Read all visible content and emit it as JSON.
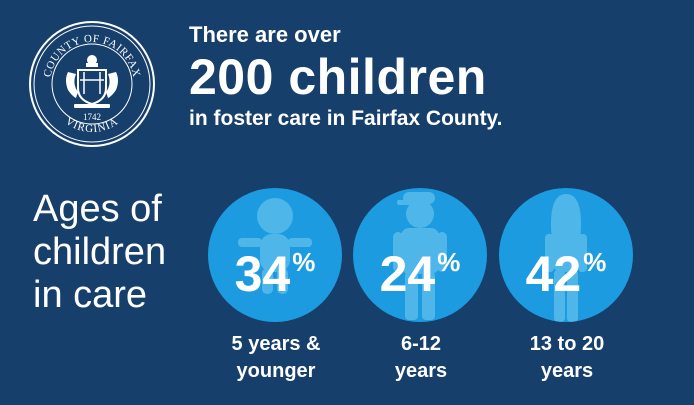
{
  "seal": {
    "top_text": "COUNTY OF FAIRFAX",
    "bottom_text": "VIRGINIA",
    "year": "1742"
  },
  "headline": {
    "line1": "There are over",
    "line2": "200 children",
    "line3": "in foster care in Fairfax County."
  },
  "ages_label": [
    "Ages of",
    "children",
    "in care"
  ],
  "stats": [
    {
      "value": "34",
      "unit": "%",
      "caption": [
        "5 years &",
        "younger"
      ],
      "icon": "baby-silhouette-icon"
    },
    {
      "value": "24",
      "unit": "%",
      "caption": [
        "6-12",
        "years"
      ],
      "icon": "child-silhouette-icon"
    },
    {
      "value": "42",
      "unit": "%",
      "caption": [
        "13 to 20",
        "years"
      ],
      "icon": "teen-silhouette-icon"
    }
  ],
  "colors": {
    "background": "#173f6c",
    "circle": "#1d9be0",
    "silhouette": "#4fb6ea",
    "text": "#ffffff"
  }
}
